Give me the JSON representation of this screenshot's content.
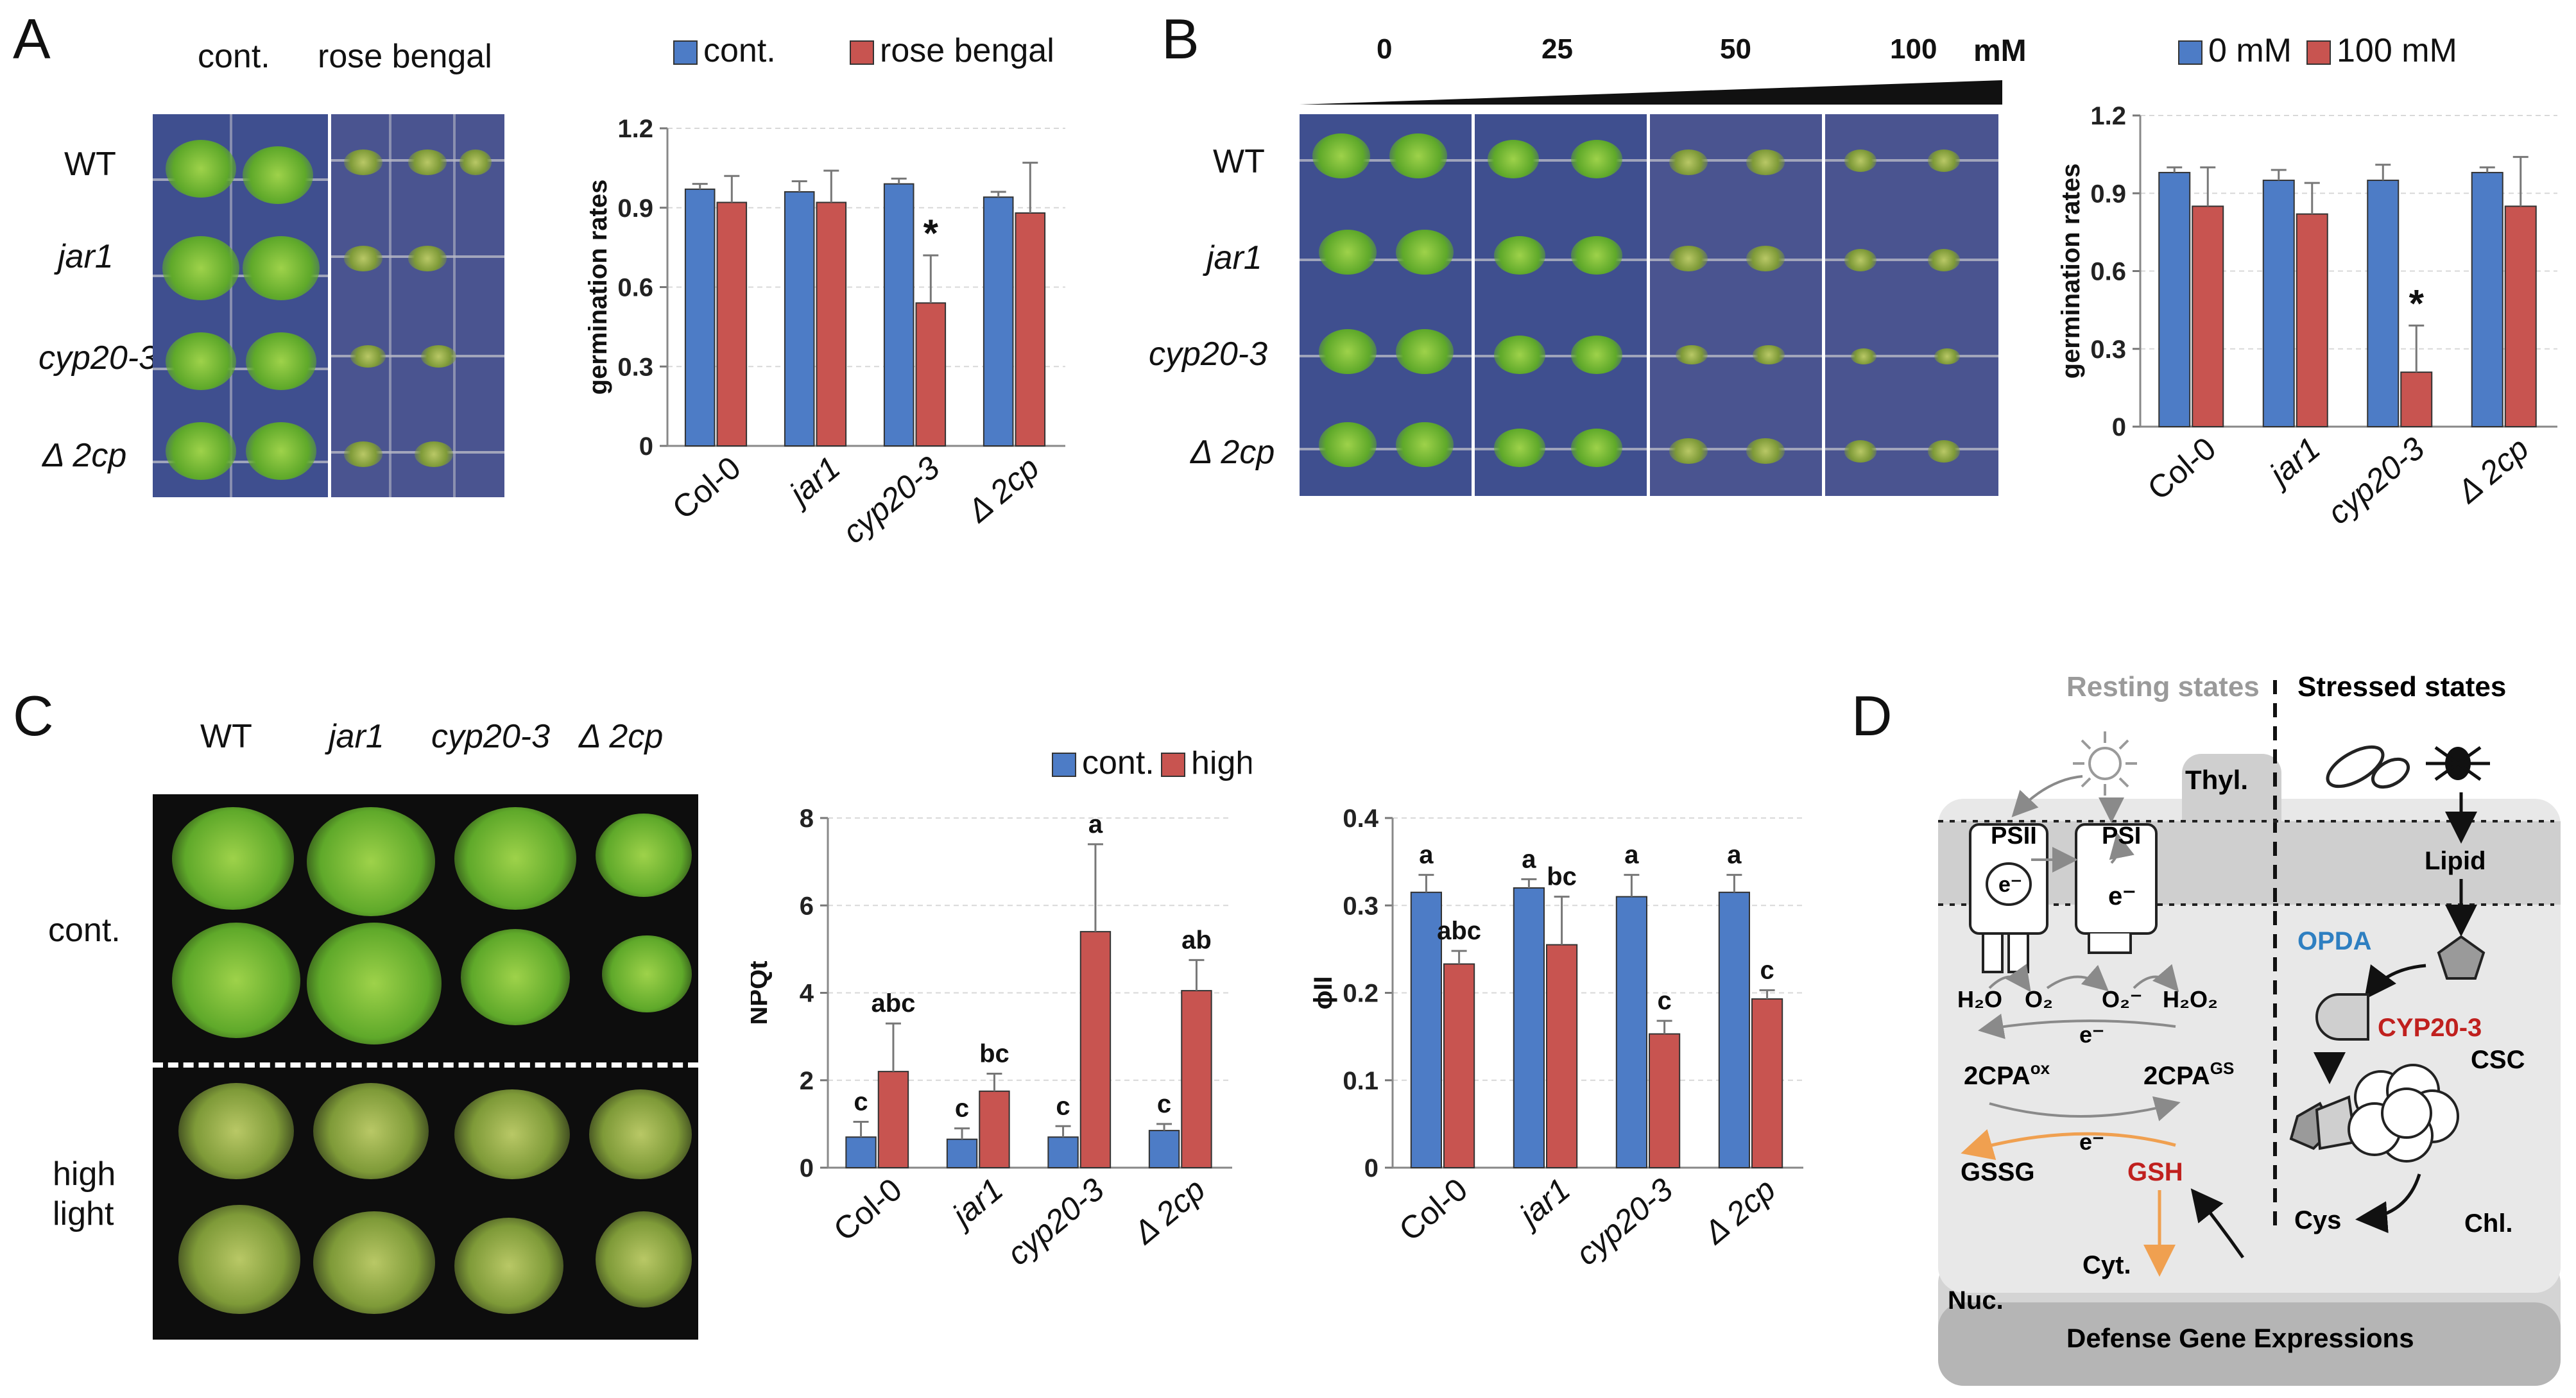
{
  "panels": {
    "A": {
      "label": "A",
      "photo_headers": [
        "cont.",
        "rose bengal"
      ],
      "row_labels": [
        "WT",
        "jar1",
        "cyp20-3",
        "Δ 2cp"
      ]
    },
    "B": {
      "label": "B",
      "concentrations": [
        "0",
        "25",
        "50",
        "100"
      ],
      "unit": "mM",
      "row_labels": [
        "WT",
        "jar1",
        "cyp20-3",
        "Δ 2cp"
      ]
    },
    "C": {
      "label": "C",
      "col_labels": [
        "WT",
        "jar1",
        "cyp20-3",
        "Δ 2cp"
      ],
      "row_labels": [
        "cont.",
        "high",
        "light"
      ]
    },
    "D": {
      "label": "D",
      "resting": "Resting states",
      "stressed": "Stressed states",
      "thyl": "Thyl.",
      "psii": "PSII",
      "psi": "PSI",
      "eminus": "e⁻",
      "h2o": "H₂O",
      "o2": "O₂",
      "o2minus": "O₂⁻",
      "h2o2": "H₂O₂",
      "cpa_ox": "2CPA",
      "cpa_ox_sup": "ox",
      "cpa_gs": "2CPA",
      "cpa_gs_sup": "GS",
      "gssg": "GSSG",
      "gsh": "GSH",
      "lipid": "Lipid",
      "opda": "OPDA",
      "cyp": "CYP20-3",
      "csc": "CSC",
      "cys": "Cys",
      "chl": "Chl.",
      "cyt": "Cyt.",
      "nuc": "Nuc.",
      "defense": "Defense Gene Expressions"
    }
  },
  "colors": {
    "blue": "#4d7cc6",
    "red": "#c85450",
    "opda": "#2e7fc1",
    "cyp": "#c0201e",
    "gsh": "#c0201e",
    "orange": "#f0a050"
  },
  "chart_data": [
    {
      "id": "chartA",
      "type": "bar",
      "categories": [
        "Col-0",
        "jar1",
        "cyp20-3",
        "Δ 2cp"
      ],
      "series": [
        {
          "name": "cont.",
          "values": [
            0.97,
            0.96,
            0.99,
            0.94
          ],
          "errors": [
            0.02,
            0.04,
            0.02,
            0.02
          ]
        },
        {
          "name": "rose bengal",
          "values": [
            0.92,
            0.92,
            0.54,
            0.88
          ],
          "errors": [
            0.1,
            0.12,
            0.18,
            0.19
          ]
        }
      ],
      "annotations": [
        {
          "category": 2,
          "series": 1,
          "text": "*"
        }
      ],
      "ylabel": "germination rates",
      "ylim": [
        0,
        1.2
      ],
      "yticks": [
        "0",
        "0.3",
        "0.6",
        "0.9",
        "1.2"
      ],
      "grid": true,
      "legend": "top"
    },
    {
      "id": "chartB",
      "type": "bar",
      "categories": [
        "Col-0",
        "jar1",
        "cyp20-3",
        "Δ 2cp"
      ],
      "series": [
        {
          "name": "0 mM",
          "values": [
            0.98,
            0.95,
            0.95,
            0.98
          ],
          "errors": [
            0.02,
            0.04,
            0.06,
            0.02
          ]
        },
        {
          "name": "100 mM",
          "values": [
            0.85,
            0.82,
            0.21,
            0.85
          ],
          "errors": [
            0.15,
            0.12,
            0.18,
            0.19
          ]
        }
      ],
      "annotations": [
        {
          "category": 2,
          "series": 1,
          "text": "*"
        }
      ],
      "ylabel": "germination rates",
      "ylim": [
        0,
        1.2
      ],
      "yticks": [
        "0",
        "0.3",
        "0.6",
        "0.9",
        "1.2"
      ],
      "grid": true,
      "legend": "top"
    },
    {
      "id": "chartC1",
      "type": "bar",
      "categories": [
        "Col-0",
        "jar1",
        "cyp20-3",
        "Δ 2cp"
      ],
      "series": [
        {
          "name": "cont.",
          "values": [
            0.7,
            0.65,
            0.7,
            0.85
          ],
          "errors": [
            0.35,
            0.25,
            0.25,
            0.15
          ],
          "letters": [
            "c",
            "c",
            "c",
            "c"
          ]
        },
        {
          "name": "high light",
          "values": [
            2.2,
            1.75,
            5.4,
            4.05
          ],
          "errors": [
            1.1,
            0.4,
            2.0,
            0.7
          ],
          "letters": [
            "abc",
            "bc",
            "a",
            "ab"
          ]
        }
      ],
      "ylabel": "NPQt",
      "ylim": [
        0,
        8
      ],
      "yticks": [
        "0",
        "2",
        "4",
        "6",
        "8"
      ],
      "grid": true,
      "legend": "top"
    },
    {
      "id": "chartC2",
      "type": "bar",
      "categories": [
        "Col-0",
        "jar1",
        "cyp20-3",
        "Δ 2cp"
      ],
      "series": [
        {
          "name": "cont.",
          "values": [
            0.315,
            0.32,
            0.31,
            0.315
          ],
          "errors": [
            0.02,
            0.01,
            0.025,
            0.02
          ],
          "letters": [
            "a",
            "a",
            "a",
            "a"
          ]
        },
        {
          "name": "high light",
          "values": [
            0.233,
            0.255,
            0.153,
            0.193
          ],
          "errors": [
            0.015,
            0.055,
            0.015,
            0.01
          ],
          "letters": [
            "abc",
            "bc",
            "c",
            "c"
          ]
        }
      ],
      "ylabel": "ϕII",
      "ylim": [
        0,
        0.4
      ],
      "yticks": [
        "0",
        "0.1",
        "0.2",
        "0.3",
        "0.4"
      ],
      "grid": true,
      "legend": "none"
    }
  ]
}
